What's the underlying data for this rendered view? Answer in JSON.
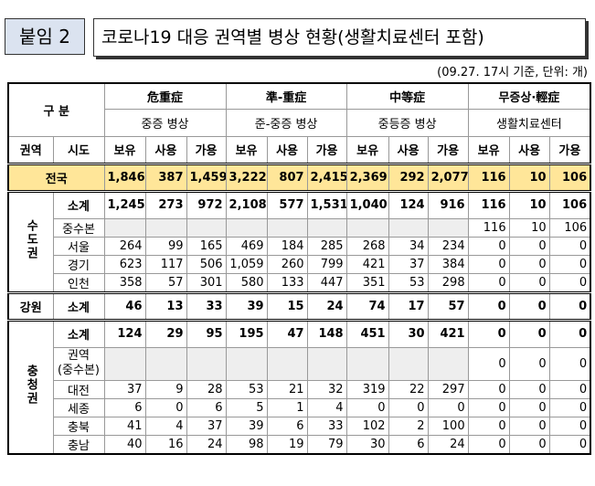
{
  "header": {
    "badge": "붙임 2",
    "title": "코로나19 대응 권역별 병상 현황(생활치료센터 포함)"
  },
  "note": "(09.27. 17시 기준, 단위: 개)",
  "table": {
    "corner": "구 분",
    "groups": [
      {
        "name": "危重症",
        "sub": "중증 병상"
      },
      {
        "name": "準-重症",
        "sub": "준-중증 병상"
      },
      {
        "name": "中等症",
        "sub": "중등증 병상"
      },
      {
        "name": "무증상·輕症",
        "sub": "생활치료센터"
      }
    ],
    "col_region": "권역",
    "col_city": "시도",
    "measures": [
      "보유",
      "사용",
      "가용"
    ],
    "total": {
      "label": "전국",
      "values": [
        "1,846",
        "387",
        "1,459",
        "3,222",
        "807",
        "2,415",
        "2,369",
        "292",
        "2,077",
        "116",
        "10",
        "106"
      ]
    },
    "regions": [
      {
        "name": "수도권",
        "rows": [
          {
            "label": "소계",
            "values": [
              "1,245",
              "273",
              "972",
              "2,108",
              "577",
              "1,531",
              "1,040",
              "124",
              "916",
              "116",
              "10",
              "106"
            ]
          },
          {
            "label": "중수본",
            "values": [
              null,
              null,
              null,
              null,
              null,
              null,
              null,
              null,
              null,
              "116",
              "10",
              "106"
            ]
          },
          {
            "label": "서울",
            "values": [
              "264",
              "99",
              "165",
              "469",
              "184",
              "285",
              "268",
              "34",
              "234",
              "0",
              "0",
              "0"
            ]
          },
          {
            "label": "경기",
            "values": [
              "623",
              "117",
              "506",
              "1,059",
              "260",
              "799",
              "421",
              "37",
              "384",
              "0",
              "0",
              "0"
            ]
          },
          {
            "label": "인천",
            "values": [
              "358",
              "57",
              "301",
              "580",
              "133",
              "447",
              "351",
              "53",
              "298",
              "0",
              "0",
              "0"
            ]
          }
        ]
      },
      {
        "name": "강원",
        "rows": [
          {
            "label": "소계",
            "values": [
              "46",
              "13",
              "33",
              "39",
              "15",
              "24",
              "74",
              "17",
              "57",
              "0",
              "0",
              "0"
            ]
          }
        ]
      },
      {
        "name": "충청권",
        "rows": [
          {
            "label": "소계",
            "values": [
              "124",
              "29",
              "95",
              "195",
              "47",
              "148",
              "451",
              "30",
              "421",
              "0",
              "0",
              "0"
            ]
          },
          {
            "label": [
              "권역",
              "(중수본)"
            ],
            "values": [
              null,
              null,
              null,
              null,
              null,
              null,
              null,
              null,
              null,
              "0",
              "0",
              "0"
            ]
          },
          {
            "label": "대전",
            "values": [
              "37",
              "9",
              "28",
              "53",
              "21",
              "32",
              "319",
              "22",
              "297",
              "0",
              "0",
              "0"
            ]
          },
          {
            "label": "세종",
            "values": [
              "6",
              "0",
              "6",
              "5",
              "1",
              "4",
              "0",
              "0",
              "0",
              "0",
              "0",
              "0"
            ]
          },
          {
            "label": "충북",
            "values": [
              "41",
              "4",
              "37",
              "39",
              "6",
              "33",
              "102",
              "2",
              "100",
              "0",
              "0",
              "0"
            ]
          },
          {
            "label": "충남",
            "values": [
              "40",
              "16",
              "24",
              "98",
              "19",
              "79",
              "30",
              "6",
              "24",
              "0",
              "0",
              "0"
            ]
          }
        ]
      }
    ]
  }
}
